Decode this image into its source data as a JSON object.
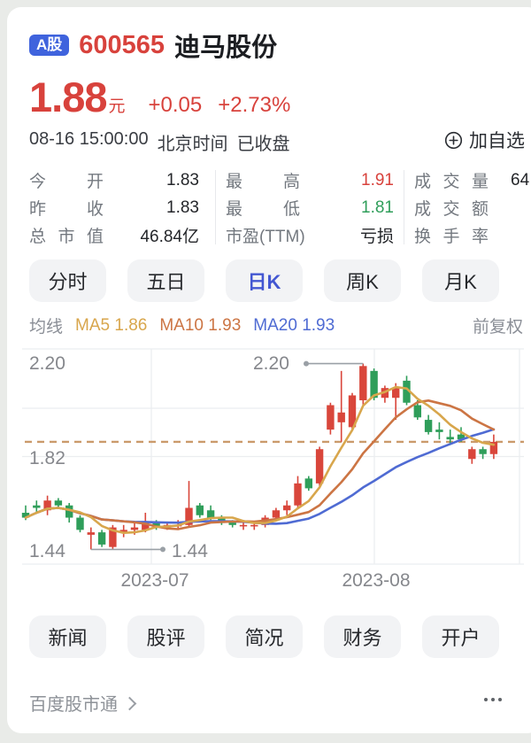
{
  "colors": {
    "accent_red": "#d8423c",
    "accent_green": "#2f9e5a",
    "badge_blue": "#3f63dd",
    "tab_active_blue": "#4357d2",
    "ma5": "#d8a64c",
    "ma10": "#cc7544",
    "ma20": "#4f6bd3",
    "reference": "#cb9a6b",
    "value_dark": "#24262a"
  },
  "header": {
    "market_badge": "A股",
    "stock_code": "600565",
    "stock_name": "迪马股份",
    "price": "1.88",
    "price_unit": "元",
    "change": "+0.05",
    "change_pct": "+2.73%",
    "datetime": "08-16 15:00:00",
    "timezone_label": "北京时间",
    "market_status": "已收盘",
    "add_watchlist": "加自选"
  },
  "stats": {
    "rows": [
      {
        "c1l": "今 开",
        "c1v": "1.83",
        "c2l": "最 高",
        "c2v": "1.91",
        "c3l": "成交量",
        "c3v": "64"
      },
      {
        "c1l": "昨 收",
        "c1v": "1.83",
        "c2l": "最 低",
        "c2v": "1.81",
        "c3l": "成交额",
        "c3v": ""
      },
      {
        "c1l": "总市值",
        "c1v": "46.84亿",
        "c2l": "市盈(TTM)",
        "c2v": "亏损",
        "c3l": "换手率",
        "c3v": ""
      }
    ]
  },
  "tabs": {
    "items": [
      "分时",
      "五日",
      "日K",
      "周K",
      "月K"
    ],
    "active": "日K"
  },
  "ma_legend": {
    "label": "均线",
    "items": [
      {
        "name": "MA5",
        "value": "1.86"
      },
      {
        "name": "MA10",
        "value": "1.93"
      },
      {
        "name": "MA20",
        "value": "1.93"
      }
    ],
    "adjust": "前复权"
  },
  "chart_data": {
    "type": "candlestick",
    "period": "日K",
    "y_ticks": [
      "2.20",
      "1.82",
      "1.44"
    ],
    "x_labels": [
      "2023-07",
      "2023-08"
    ],
    "y_range": [
      1.38,
      2.26
    ],
    "reference_line": 1.88,
    "annotations": {
      "high": "2.20",
      "low": "1.44"
    },
    "ma_periods": [
      5,
      10,
      20
    ],
    "candles": [
      [
        1.59,
        1.62,
        1.56,
        1.57
      ],
      [
        1.62,
        1.64,
        1.59,
        1.61
      ],
      [
        1.6,
        1.66,
        1.58,
        1.64
      ],
      [
        1.64,
        1.65,
        1.61,
        1.62
      ],
      [
        1.62,
        1.63,
        1.55,
        1.57
      ],
      [
        1.57,
        1.58,
        1.51,
        1.52
      ],
      [
        1.5,
        1.53,
        1.44,
        1.51
      ],
      [
        1.51,
        1.52,
        1.45,
        1.46
      ],
      [
        1.45,
        1.54,
        1.44,
        1.53
      ],
      [
        1.51,
        1.54,
        1.49,
        1.52
      ],
      [
        1.52,
        1.55,
        1.5,
        1.53
      ],
      [
        1.52,
        1.59,
        1.51,
        1.55
      ],
      [
        1.55,
        1.56,
        1.52,
        1.53
      ],
      [
        1.53,
        1.55,
        1.52,
        1.54
      ],
      [
        1.54,
        1.56,
        1.52,
        1.54
      ],
      [
        1.54,
        1.72,
        1.53,
        1.61
      ],
      [
        1.62,
        1.63,
        1.57,
        1.58
      ],
      [
        1.6,
        1.62,
        1.56,
        1.57
      ],
      [
        1.57,
        1.58,
        1.54,
        1.55
      ],
      [
        1.55,
        1.56,
        1.53,
        1.54
      ],
      [
        1.54,
        1.56,
        1.52,
        1.54
      ],
      [
        1.54,
        1.55,
        1.52,
        1.54
      ],
      [
        1.54,
        1.58,
        1.53,
        1.57
      ],
      [
        1.57,
        1.61,
        1.56,
        1.6
      ],
      [
        1.6,
        1.64,
        1.58,
        1.62
      ],
      [
        1.62,
        1.74,
        1.61,
        1.71
      ],
      [
        1.73,
        1.74,
        1.68,
        1.69
      ],
      [
        1.71,
        1.86,
        1.7,
        1.85
      ],
      [
        1.93,
        2.04,
        1.91,
        2.03
      ],
      [
        1.96,
        2.17,
        1.88,
        2.0
      ],
      [
        1.94,
        2.08,
        1.93,
        2.07
      ],
      [
        2.05,
        2.2,
        2.03,
        2.19
      ],
      [
        2.17,
        2.18,
        2.05,
        2.06
      ],
      [
        2.06,
        2.11,
        2.04,
        2.1
      ],
      [
        2.06,
        2.12,
        1.97,
        2.1
      ],
      [
        2.13,
        2.15,
        2.03,
        2.04
      ],
      [
        2.03,
        2.05,
        1.97,
        1.98
      ],
      [
        1.97,
        1.99,
        1.91,
        1.92
      ],
      [
        1.93,
        1.96,
        1.89,
        1.92
      ],
      [
        1.9,
        1.93,
        1.87,
        1.89
      ],
      [
        1.91,
        1.94,
        1.88,
        1.89
      ],
      [
        1.81,
        1.86,
        1.79,
        1.85
      ],
      [
        1.85,
        1.86,
        1.81,
        1.83
      ],
      [
        1.83,
        1.91,
        1.81,
        1.88
      ]
    ],
    "colors": {
      "up": "#d9463b",
      "down": "#2f9e5a",
      "ma5": "#d8a64c",
      "ma10": "#cc7544",
      "ma20": "#4f6bd3",
      "reference": "#cb9a6b",
      "grid": "#ebedf0",
      "annotation": "#9aa0a6"
    }
  },
  "bottom_tabs": {
    "items": [
      "新闻",
      "股评",
      "简况",
      "财务",
      "开户"
    ]
  },
  "footer": {
    "brand": "百度股市通"
  }
}
